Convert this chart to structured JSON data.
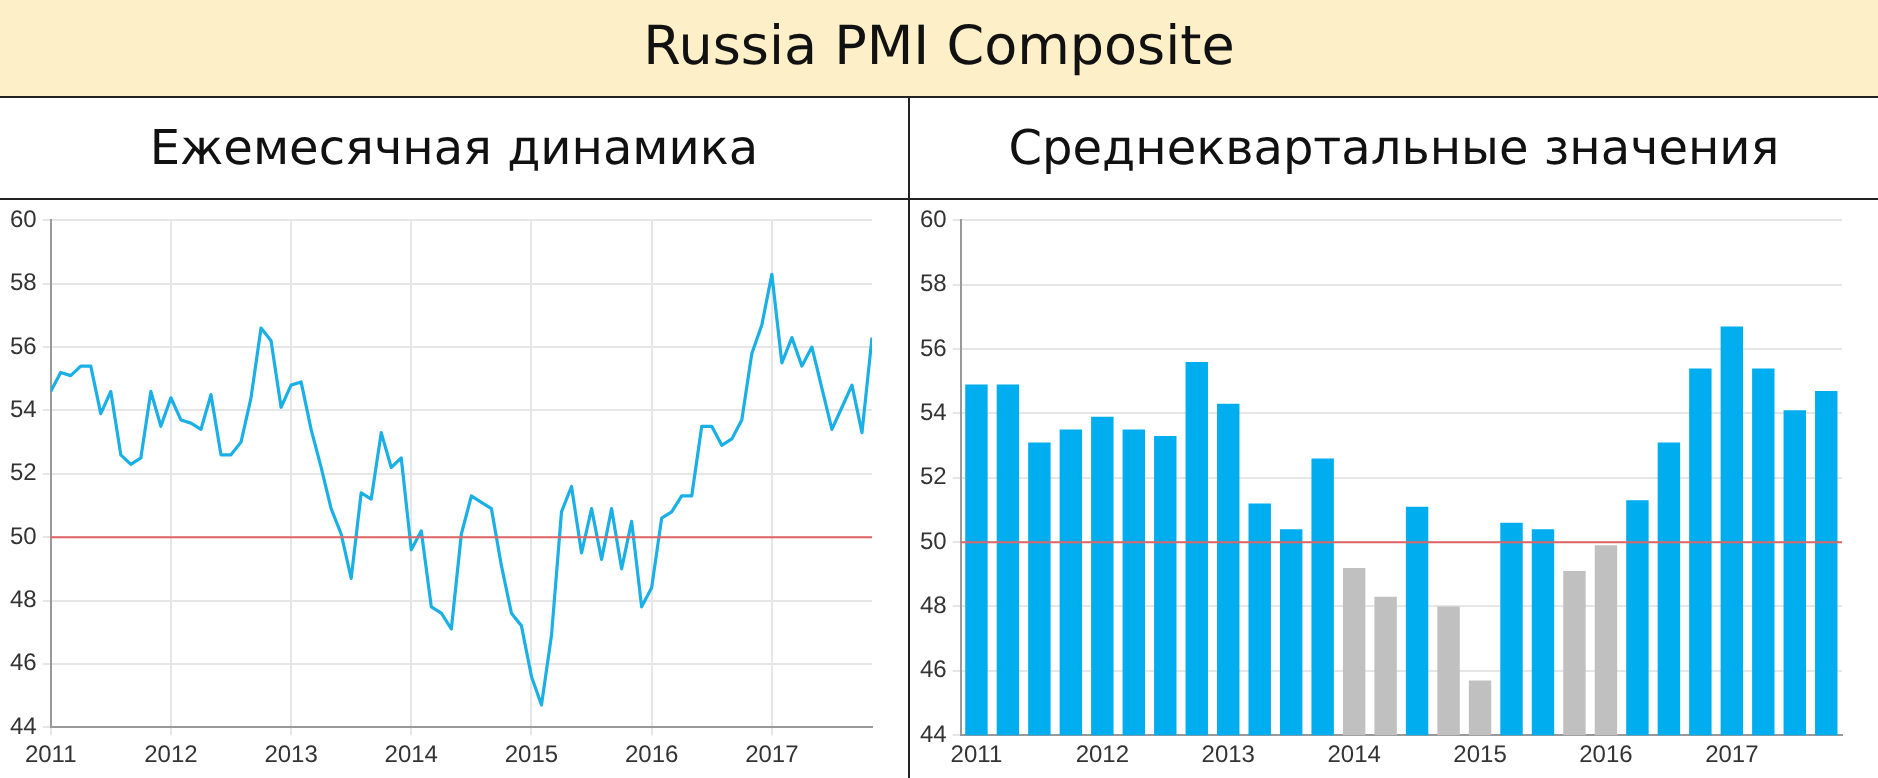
{
  "chart_data": [
    {
      "type": "line",
      "title": "Russia PMI Composite",
      "subtitle": "Ежемесячная динамика",
      "x": [
        "2011-01",
        "2011-02",
        "2011-03",
        "2011-04",
        "2011-05",
        "2011-06",
        "2011-07",
        "2011-08",
        "2011-09",
        "2011-10",
        "2011-11",
        "2011-12",
        "2012-01",
        "2012-02",
        "2012-03",
        "2012-04",
        "2012-05",
        "2012-06",
        "2012-07",
        "2012-08",
        "2012-09",
        "2012-10",
        "2012-11",
        "2012-12",
        "2013-01",
        "2013-02",
        "2013-03",
        "2013-04",
        "2013-05",
        "2013-06",
        "2013-07",
        "2013-08",
        "2013-09",
        "2013-10",
        "2013-11",
        "2013-12",
        "2014-01",
        "2014-02",
        "2014-03",
        "2014-04",
        "2014-05",
        "2014-06",
        "2014-07",
        "2014-08",
        "2014-09",
        "2014-10",
        "2014-11",
        "2014-12",
        "2015-01",
        "2015-02",
        "2015-03",
        "2015-04",
        "2015-05",
        "2015-06",
        "2015-07",
        "2015-08",
        "2015-09",
        "2015-10",
        "2015-11",
        "2015-12",
        "2016-01",
        "2016-02",
        "2016-03",
        "2016-04",
        "2016-05",
        "2016-06",
        "2016-07",
        "2016-08",
        "2016-09",
        "2016-10",
        "2016-11",
        "2016-12",
        "2017-01",
        "2017-02",
        "2017-03",
        "2017-04",
        "2017-05",
        "2017-06",
        "2017-07",
        "2017-08",
        "2017-09",
        "2017-10",
        "2017-11"
      ],
      "series": [
        {
          "color": "#1ab0e6",
          "values": [
            54.6,
            55.2,
            55.1,
            55.4,
            55.4,
            53.9,
            54.6,
            52.6,
            52.3,
            52.5,
            54.6,
            53.5,
            54.4,
            53.7,
            53.6,
            53.4,
            54.5,
            52.6,
            52.6,
            53.0,
            54.4,
            56.6,
            56.2,
            54.1,
            54.8,
            54.9,
            53.4,
            52.2,
            50.9,
            50.1,
            48.7,
            51.4,
            51.2,
            53.3,
            52.2,
            52.5,
            49.6,
            50.2,
            47.8,
            47.6,
            47.1,
            50.1,
            51.3,
            51.1,
            50.9,
            49.1,
            47.6,
            47.2,
            45.6,
            44.7,
            46.9,
            50.8,
            51.6,
            49.5,
            50.9,
            49.3,
            50.9,
            49.0,
            50.5,
            47.8,
            48.4,
            50.6,
            50.8,
            51.3,
            51.3,
            53.5,
            53.5,
            52.9,
            53.1,
            53.7,
            55.8,
            56.7,
            58.3,
            55.5,
            56.3,
            55.4,
            56.0,
            54.7,
            53.4,
            54.1,
            54.8,
            53.3,
            56.3
          ]
        }
      ],
      "xlim": [
        "2011-01",
        "2017-11"
      ],
      "xticks": [
        "2011",
        "2012",
        "2013",
        "2014",
        "2015",
        "2016",
        "2017"
      ],
      "ylim": [
        44,
        60
      ],
      "yticks": [
        44,
        46,
        48,
        50,
        52,
        54,
        56,
        58,
        60
      ],
      "grid": true,
      "marker": "none",
      "ref_lines": [
        {
          "axis": "y",
          "value": 50,
          "color": "#e06666"
        }
      ]
    },
    {
      "type": "bar",
      "subtitle": "Среднеквартальные значения",
      "categories": [
        "2011",
        null,
        null,
        null,
        "2012",
        null,
        null,
        null,
        "2013",
        null,
        null,
        null,
        "2014",
        null,
        null,
        null,
        "2015",
        null,
        null,
        null,
        "2016",
        null,
        null,
        null,
        "2017",
        null,
        null,
        null
      ],
      "values": [
        54.9,
        54.9,
        53.1,
        53.5,
        53.9,
        53.5,
        53.3,
        55.6,
        54.3,
        51.2,
        50.4,
        52.6,
        49.2,
        48.3,
        51.1,
        48.0,
        45.7,
        50.6,
        50.4,
        49.1,
        49.9,
        51.3,
        53.1,
        55.4,
        56.7,
        55.4,
        54.1,
        54.7
      ],
      "colors": [
        "#00aeef",
        "#00aeef",
        "#00aeef",
        "#00aeef",
        "#00aeef",
        "#00aeef",
        "#00aeef",
        "#00aeef",
        "#00aeef",
        "#00aeef",
        "#00aeef",
        "#00aeef",
        "#c0c0c0",
        "#c0c0c0",
        "#00aeef",
        "#c0c0c0",
        "#c0c0c0",
        "#00aeef",
        "#00aeef",
        "#c0c0c0",
        "#c0c0c0",
        "#00aeef",
        "#00aeef",
        "#00aeef",
        "#00aeef",
        "#00aeef",
        "#00aeef",
        "#00aeef"
      ],
      "ylim": [
        44,
        60
      ],
      "yticks": [
        44,
        46,
        48,
        50,
        52,
        54,
        56,
        58,
        60
      ],
      "grid": "y",
      "ref_lines": [
        {
          "axis": "y",
          "value": 50,
          "color": "#e06666"
        }
      ]
    }
  ]
}
